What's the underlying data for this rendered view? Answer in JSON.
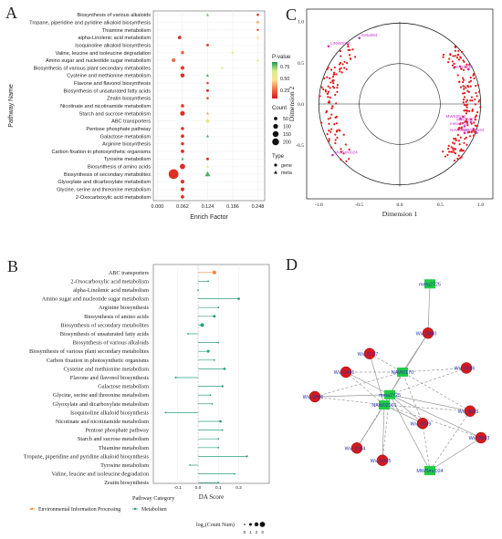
{
  "panels": {
    "A": "A",
    "B": "B",
    "C": "C",
    "D": "D"
  },
  "chart_data": [
    {
      "type": "scatter",
      "panel": "A",
      "xlabel": "Enrich Factor",
      "ylabel": "Pathway Name",
      "xticks": [
        "0.000",
        "0.062",
        "0.124",
        "0.186",
        "0.248"
      ],
      "xlim": [
        -0.01,
        0.265
      ],
      "categories": [
        "Biosynthesis of various alkaloids",
        "Tropane, piperidine and pyridine alkaloid biosynthesis",
        "Thiamine metabolism",
        "alpha-Linolenic acid metabolism",
        "Isoquinoline alkaloid biosynthesis",
        "Valine, leucine and isoleucine degradation",
        "Amino sugar and nucleotide sugar metabolism",
        "Biosynthesis of various plant secondary metabolites",
        "Cysteine and methionine metabolism",
        "Flavone and flavonol biosynthesis",
        "Biosynthesis of unsaturated fatty acids",
        "Zeatin biosynthesis",
        "Nicotinate and nicotinamide metabolism",
        "Starch and sucrose metabolism",
        "ABC transporters",
        "Pentose phosphate pathway",
        "Galactose metabolism",
        "Arginine biosynthesis",
        "Carbon fixation in photosynthetic organisms",
        "Tyrosine metabolism",
        "Biosynthesis of amino acids",
        "Biosynthesis of secondary metabolites",
        "Glyoxylate and dicarboxylate metabolism",
        "Glycine, serine and threonine metabolism",
        "2-Oxocarboxylic acid metabolism"
      ],
      "gene_points": [
        {
          "pathway": 0,
          "x": 0.248,
          "count": 12,
          "p": 0.05
        },
        {
          "pathway": 1,
          "x": 0.248,
          "count": 12,
          "p": 0.05
        },
        {
          "pathway": 2,
          "x": 0.248,
          "count": 10,
          "p": 0.1
        },
        {
          "pathway": 3,
          "x": 0.055,
          "count": 25,
          "p": 0.05
        },
        {
          "pathway": 4,
          "x": 0.124,
          "count": 15,
          "p": 0.1
        },
        {
          "pathway": 5,
          "x": 0.062,
          "count": 20,
          "p": 0.15
        },
        {
          "pathway": 6,
          "x": 0.04,
          "count": 30,
          "p": 0.2
        },
        {
          "pathway": 7,
          "x": 0.062,
          "count": 30,
          "p": 0.08
        },
        {
          "pathway": 8,
          "x": 0.062,
          "count": 35,
          "p": 0.05
        },
        {
          "pathway": 9,
          "x": 0.124,
          "count": 12,
          "p": 0.1
        },
        {
          "pathway": 10,
          "x": 0.124,
          "count": 15,
          "p": 0.05
        },
        {
          "pathway": 11,
          "x": 0.124,
          "count": 12,
          "p": 0.1
        },
        {
          "pathway": 12,
          "x": 0.062,
          "count": 25,
          "p": 0.1
        },
        {
          "pathway": 13,
          "x": 0.062,
          "count": 45,
          "p": 0.05
        },
        {
          "pathway": 14,
          "x": 0.124,
          "count": 30,
          "p": 0.4
        },
        {
          "pathway": 15,
          "x": 0.062,
          "count": 20,
          "p": 0.05
        },
        {
          "pathway": 16,
          "x": 0.062,
          "count": 25,
          "p": 0.05
        },
        {
          "pathway": 17,
          "x": 0.062,
          "count": 20,
          "p": 0.05
        },
        {
          "pathway": 18,
          "x": 0.062,
          "count": 25,
          "p": 0.05
        },
        {
          "pathway": 19,
          "x": 0.124,
          "count": 15,
          "p": 0.05
        },
        {
          "pathway": 20,
          "x": 0.062,
          "count": 60,
          "p": 0.05
        },
        {
          "pathway": 21,
          "x": 0.04,
          "count": 200,
          "p": 0.05
        },
        {
          "pathway": 22,
          "x": 0.062,
          "count": 30,
          "p": 0.05
        },
        {
          "pathway": 23,
          "x": 0.062,
          "count": 30,
          "p": 0.05
        },
        {
          "pathway": 24,
          "x": 0.062,
          "count": 25,
          "p": 0.05
        }
      ],
      "meta_points": [
        {
          "pathway": 0,
          "x": 0.124,
          "count": 8,
          "p": 0.7
        },
        {
          "pathway": 1,
          "x": 0.248,
          "count": 4,
          "p": 0.45
        },
        {
          "pathway": 3,
          "x": 0.248,
          "count": 4,
          "p": 0.4
        },
        {
          "pathway": 5,
          "x": 0.186,
          "count": 6,
          "p": 0.6
        },
        {
          "pathway": 6,
          "x": 0.248,
          "count": 5,
          "p": 0.5
        },
        {
          "pathway": 7,
          "x": 0.16,
          "count": 6,
          "p": 0.55
        },
        {
          "pathway": 8,
          "x": 0.124,
          "count": 8,
          "p": 0.75
        },
        {
          "pathway": 13,
          "x": 0.124,
          "count": 8,
          "p": 0.3
        },
        {
          "pathway": 14,
          "x": 0.124,
          "count": 6,
          "p": 0.6
        },
        {
          "pathway": 16,
          "x": 0.124,
          "count": 5,
          "p": 0.75
        },
        {
          "pathway": 19,
          "x": 0.062,
          "count": 8,
          "p": 0.75
        },
        {
          "pathway": 20,
          "x": 0.124,
          "count": 8,
          "p": 0.6
        },
        {
          "pathway": 21,
          "x": 0.124,
          "count": 30,
          "p": 0.75
        }
      ],
      "legend": {
        "color_title": "P-value",
        "color_ticks": [
          "0.75",
          "0.50",
          "0.25"
        ],
        "colors": [
          "#1a9850",
          "#d9ef8b",
          "#fee08b",
          "#f46d43",
          "#d7191c"
        ],
        "size_title": "Count",
        "size_values": [
          "50",
          "100",
          "150",
          "200"
        ],
        "type_title": "Type",
        "type_values": [
          "gene",
          "meta"
        ]
      }
    },
    {
      "type": "scatter",
      "panel": "B",
      "xlabel": "DA Score",
      "xticks": [
        "-0.1",
        "0.0",
        "0.1",
        "0.2"
      ],
      "xlim": [
        -0.22,
        0.35
      ],
      "categories": [
        "ABC transporters",
        "2-Oxocarboxylic acid metabolism",
        "alpha-Linolenic acid metabolism",
        "Amino sugar and nucleotide sugar metabolism",
        "Arginine biosynthesis",
        "Biosynthesis of amino acids",
        "Biosynthesis of secondary metabolites",
        "Biosynthesis of unsaturated fatty acids",
        "Biosynthesis of various alkaloids",
        "Biosynthesis of various plant secondary metabolites",
        "Carbon fixation in photosynthetic organisms",
        "Cysteine and methionine metabolism",
        "Flavone and flavonol biosynthesis",
        "Galactose metabolism",
        "Glycine, serine and threonine metabolism",
        "Glyoxylate and dicarboxylate metabolism",
        "Isoquinoline alkaloid biosynthesis",
        "Nicotinate and nicotinamide metabolism",
        "Pentose phosphate pathway",
        "Starch and sucrose metabolism",
        "Thiamine metabolism",
        "Tropane, piperidine and pyridine alkaloid biosynthesis",
        "Tyrosine metabolism",
        "Valine, leucine and isoleucine degradation",
        "Zeatin biosynthesis"
      ],
      "da_scores": [
        0.08,
        0.05,
        0.0,
        0.2,
        0.1,
        0.08,
        0.02,
        -0.05,
        0.1,
        0.05,
        0.08,
        0.13,
        -0.11,
        0.12,
        0.06,
        0.07,
        -0.16,
        0.11,
        0.12,
        0.1,
        0.1,
        0.24,
        -0.04,
        0.18,
        0.1
      ],
      "counts": [
        2.5,
        0.8,
        1.0,
        1.6,
        0.8,
        1.8,
        2.4,
        0.7,
        0.8,
        1.8,
        0.8,
        1.6,
        1.2,
        1.4,
        0.8,
        0.8,
        0.6,
        1.6,
        0.8,
        0.8,
        0.8,
        1.4,
        0.6,
        0.8,
        0.8
      ],
      "category_of": [
        "env",
        "met",
        "met",
        "met",
        "met",
        "met",
        "met",
        "met",
        "met",
        "met",
        "met",
        "met",
        "met",
        "met",
        "met",
        "met",
        "met",
        "met",
        "met",
        "met",
        "met",
        "met",
        "met",
        "met",
        "met"
      ],
      "legend": {
        "title": "Pathway Category",
        "items": [
          "Environmental Information Processing",
          "Metabolism"
        ],
        "colors": [
          "#f08a3c",
          "#2aa084"
        ],
        "size_title": "log₂(Count Num)",
        "size_values": [
          "0",
          "1",
          "2",
          "3"
        ]
      }
    },
    {
      "type": "scatter",
      "panel": "C",
      "xlabel": "Dimension 1",
      "ylabel": "Dimension 2",
      "xticks": [
        "-1.0",
        "-0.5",
        "0.0",
        "0.5",
        "1.0"
      ],
      "yticks": [
        "1.0",
        "0.5",
        "0.0",
        "-0.5"
      ],
      "xlim": [
        -1.15,
        1.15
      ],
      "ylim": [
        -1.15,
        1.15
      ],
      "labels": [
        {
          "text": "meta064",
          "x": -0.5,
          "y": 0.8
        },
        {
          "text": "LINW0007",
          "x": -0.88,
          "y": 0.7
        },
        {
          "text": "meta1030",
          "x": 0.85,
          "y": 0.42
        },
        {
          "text": "MWS0513",
          "x": 0.75,
          "y": -0.18
        },
        {
          "text": "MWS0676",
          "x": 0.88,
          "y": -0.22
        },
        {
          "text": "meta2725",
          "x": 0.8,
          "y": -0.27
        },
        {
          "text": "NAW0025",
          "x": 0.8,
          "y": -0.35
        },
        {
          "text": "MSW00164",
          "x": 0.95,
          "y": -0.35
        },
        {
          "text": "MWSm0024",
          "x": -0.83,
          "y": -0.62
        }
      ],
      "highlight_color": "#cc33cc",
      "point_color": "#e41a1c"
    },
    {
      "type": "diagram",
      "panel": "D",
      "nodes": [
        {
          "id": "m25",
          "label": "meta2725",
          "kind": "meta",
          "x": 0.68,
          "y": 0.05
        },
        {
          "id": "w1",
          "label": "Wv_0880",
          "kind": "gene",
          "x": 0.67,
          "y": 0.29
        },
        {
          "id": "w2",
          "label": "Wv_0177",
          "kind": "gene",
          "x": 0.35,
          "y": 0.39
        },
        {
          "id": "w3",
          "label": "Wv_0586",
          "kind": "gene",
          "x": 0.88,
          "y": 0.46
        },
        {
          "id": "m1",
          "label": "NAW0170",
          "kind": "meta",
          "x": 0.53,
          "y": 0.48
        },
        {
          "id": "w4",
          "label": "Wv_0441",
          "kind": "gene",
          "x": 0.22,
          "y": 0.48
        },
        {
          "id": "w5",
          "label": "Wv_0666",
          "kind": "gene",
          "x": 0.05,
          "y": 0.6
        },
        {
          "id": "m2",
          "label": "meta2725",
          "kind": "meta",
          "x": 0.46,
          "y": 0.59
        },
        {
          "id": "m3",
          "label": "NAW02001",
          "kind": "meta",
          "x": 0.43,
          "y": 0.64
        },
        {
          "id": "w6",
          "label": "Wv_0025",
          "kind": "gene",
          "x": 0.9,
          "y": 0.67
        },
        {
          "id": "w7",
          "label": "Wv_0079",
          "kind": "gene",
          "x": 0.64,
          "y": 0.73
        },
        {
          "id": "w8",
          "label": "Wv_0603",
          "kind": "gene",
          "x": 0.96,
          "y": 0.8
        },
        {
          "id": "w9",
          "label": "Wv_3154",
          "kind": "gene",
          "x": 0.28,
          "y": 0.85
        },
        {
          "id": "w10",
          "label": "Wv_0275",
          "kind": "gene",
          "x": 0.42,
          "y": 0.91
        },
        {
          "id": "m4",
          "label": "MWSmc024",
          "kind": "meta",
          "x": 0.68,
          "y": 0.96
        }
      ],
      "edges": [
        [
          "m25",
          "w1",
          "solid"
        ],
        [
          "w1",
          "m1",
          "solid"
        ],
        [
          "w1",
          "m2",
          "solid"
        ],
        [
          "w2",
          "m1",
          "dash"
        ],
        [
          "w2",
          "m3",
          "solid"
        ],
        [
          "w3",
          "m1",
          "dash"
        ],
        [
          "w3",
          "m2",
          "dash"
        ],
        [
          "w4",
          "m1",
          "dash"
        ],
        [
          "w4",
          "m3",
          "dash"
        ],
        [
          "w4",
          "m2",
          "solid"
        ],
        [
          "w5",
          "m2",
          "solid"
        ],
        [
          "w5",
          "m3",
          "dash"
        ],
        [
          "w5",
          "m1",
          "dash"
        ],
        [
          "m1",
          "m2",
          "solid"
        ],
        [
          "m2",
          "m3",
          "solid"
        ],
        [
          "w6",
          "m2",
          "solid"
        ],
        [
          "w6",
          "m3",
          "dash"
        ],
        [
          "w6",
          "m1",
          "dash"
        ],
        [
          "w7",
          "m2",
          "solid"
        ],
        [
          "w7",
          "m3",
          "solid"
        ],
        [
          "w8",
          "m2",
          "solid"
        ],
        [
          "w8",
          "m4",
          "solid"
        ],
        [
          "w9",
          "m3",
          "solid"
        ],
        [
          "w9",
          "m2",
          "dash"
        ],
        [
          "w10",
          "m3",
          "solid"
        ],
        [
          "w10",
          "m2",
          "dash"
        ],
        [
          "m4",
          "w7",
          "dash"
        ],
        [
          "m4",
          "w6",
          "dash"
        ],
        [
          "m4",
          "m2",
          "solid"
        ],
        [
          "w7",
          "m1",
          "dash"
        ],
        [
          "w8",
          "m3",
          "dash"
        ]
      ],
      "gene_color": "#d7191c",
      "meta_color": "#22cc44"
    }
  ]
}
